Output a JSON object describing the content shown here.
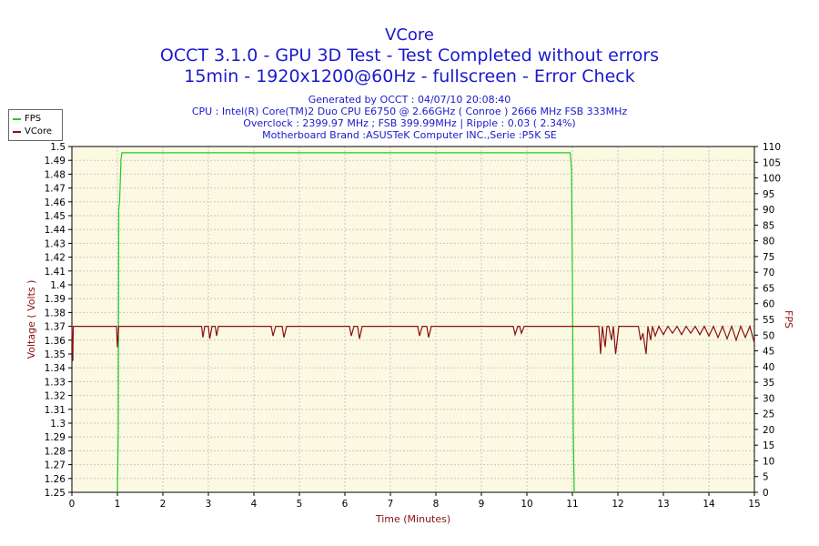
{
  "titles": {
    "line1": "VCore",
    "line2": "OCCT 3.1.0 - GPU 3D Test - Test Completed without errors",
    "line3": "15min - 1920x1200@60Hz - fullscreen - Error Check"
  },
  "info": [
    "Generated by OCCT : 04/07/10 20:08:40",
    "CPU : Intel(R) Core(TM)2 Duo CPU E6750 @ 2.66GHz ( Conroe ) 2666 MHz FSB 333MHz",
    "Overclock : 2399.97 MHz ; FSB 399.99MHz | Ripple : 0.03 ( 2.34%)",
    "Motherboard Brand :ASUSTeK Computer INC.,Serie :P5K SE"
  ],
  "colors": {
    "fps": "#22cc22",
    "vcore": "#8b1010",
    "title": "#1a1acc",
    "plot_bg": "#fbf9e2",
    "axis_label": "#8b1010"
  },
  "chart_data": {
    "type": "line",
    "xlabel": "Time (Minutes)",
    "ylabel_left": "Voltage ( Volts )",
    "ylabel_right": "FPS",
    "xlim": [
      0,
      15
    ],
    "ylim_left": [
      1.25,
      1.5
    ],
    "ylim_right": [
      0,
      110
    ],
    "xticks": [
      "0",
      "1",
      "2",
      "3",
      "4",
      "5",
      "6",
      "7",
      "8",
      "9",
      "10",
      "11",
      "12",
      "13",
      "14",
      "15"
    ],
    "yticks_left": [
      "1.25",
      "1.26",
      "1.27",
      "1.28",
      "1.29",
      "1.3",
      "1.31",
      "1.32",
      "1.33",
      "1.34",
      "1.35",
      "1.36",
      "1.37",
      "1.38",
      "1.39",
      "1.4",
      "1.41",
      "1.42",
      "1.43",
      "1.44",
      "1.45",
      "1.46",
      "1.47",
      "1.48",
      "1.49",
      "1.5"
    ],
    "yticks_right": [
      "0",
      "5",
      "10",
      "15",
      "20",
      "25",
      "30",
      "35",
      "40",
      "45",
      "50",
      "55",
      "60",
      "65",
      "70",
      "75",
      "80",
      "85",
      "90",
      "95",
      "100",
      "105",
      "110"
    ],
    "grid": true,
    "legend": "top-left",
    "series": [
      {
        "name": "FPS",
        "axis": "right",
        "x": [
          1.0,
          1.02,
          1.03,
          1.05,
          1.08,
          1.1,
          2.0,
          3.0,
          4.0,
          5.0,
          6.0,
          7.0,
          8.0,
          9.0,
          10.0,
          10.95,
          10.98,
          11.0,
          11.02,
          11.04
        ],
        "y": [
          0,
          20,
          90,
          93,
          106,
          108,
          108,
          108,
          108,
          108,
          108,
          108,
          108,
          108,
          108,
          108,
          103,
          70,
          20,
          0
        ]
      },
      {
        "name": "VCore",
        "axis": "left",
        "x": [
          0.0,
          0.02,
          0.03,
          0.05,
          0.98,
          1.0,
          1.02,
          1.03,
          1.05,
          2.85,
          2.88,
          2.92,
          3.0,
          3.03,
          3.08,
          3.15,
          3.18,
          3.22,
          4.38,
          4.42,
          4.48,
          4.62,
          4.66,
          4.72,
          6.1,
          6.14,
          6.2,
          6.28,
          6.32,
          6.38,
          7.6,
          7.64,
          7.7,
          7.8,
          7.84,
          7.9,
          9.7,
          9.74,
          9.8,
          9.84,
          9.88,
          9.94,
          11.58,
          11.62,
          11.66,
          11.72,
          11.76,
          11.8,
          11.86,
          11.9,
          11.95,
          12.02,
          12.06,
          12.1,
          12.45,
          12.5,
          12.55,
          12.62,
          12.66,
          12.72,
          12.76,
          12.82,
          12.9,
          13.0,
          13.1,
          13.2,
          13.3,
          13.4,
          13.5,
          13.6,
          13.7,
          13.8,
          13.9,
          14.0,
          14.1,
          14.2,
          14.3,
          14.4,
          14.5,
          14.6,
          14.7,
          14.8,
          14.9,
          15.0
        ],
        "y": [
          1.37,
          1.345,
          1.37,
          1.37,
          1.37,
          1.355,
          1.365,
          1.37,
          1.37,
          1.37,
          1.362,
          1.37,
          1.37,
          1.361,
          1.37,
          1.37,
          1.363,
          1.37,
          1.37,
          1.363,
          1.37,
          1.37,
          1.362,
          1.37,
          1.37,
          1.363,
          1.37,
          1.37,
          1.361,
          1.37,
          1.37,
          1.363,
          1.37,
          1.37,
          1.362,
          1.37,
          1.37,
          1.364,
          1.37,
          1.37,
          1.365,
          1.37,
          1.37,
          1.35,
          1.37,
          1.355,
          1.37,
          1.37,
          1.36,
          1.37,
          1.35,
          1.37,
          1.37,
          1.37,
          1.37,
          1.36,
          1.365,
          1.35,
          1.37,
          1.36,
          1.37,
          1.363,
          1.37,
          1.364,
          1.37,
          1.365,
          1.37,
          1.364,
          1.37,
          1.365,
          1.37,
          1.364,
          1.37,
          1.363,
          1.37,
          1.362,
          1.37,
          1.361,
          1.37,
          1.36,
          1.37,
          1.362,
          1.37,
          1.358
        ]
      }
    ]
  }
}
